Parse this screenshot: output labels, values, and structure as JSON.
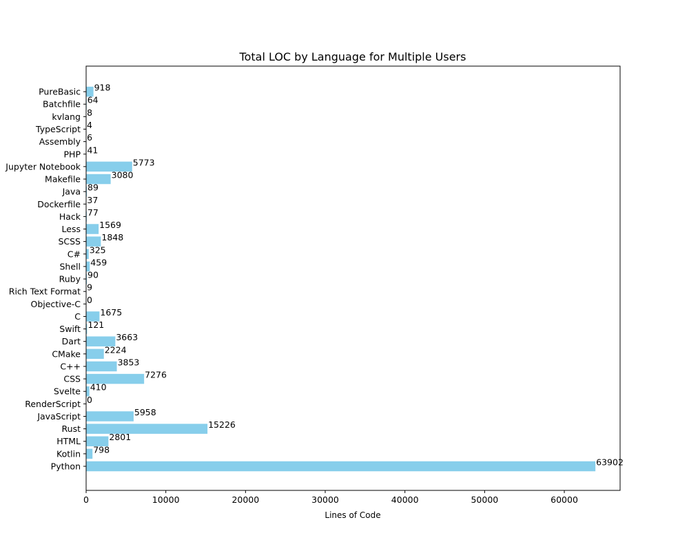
{
  "chart_data": {
    "type": "bar",
    "orientation": "horizontal",
    "title": "Total LOC by Language for Multiple Users",
    "xlabel": "Lines of Code",
    "ylabel": "",
    "xlim": [
      0,
      67000
    ],
    "xticks": [
      0,
      10000,
      20000,
      30000,
      40000,
      50000,
      60000
    ],
    "grid": false,
    "bar_color": "#87CEEB",
    "data_labels": true,
    "categories": [
      "Python",
      "Kotlin",
      "HTML",
      "Rust",
      "JavaScript",
      "RenderScript",
      "Svelte",
      "CSS",
      "C++",
      "CMake",
      "Dart",
      "Swift",
      "C",
      "Objective-C",
      "Rich Text Format",
      "Ruby",
      "Shell",
      "C#",
      "SCSS",
      "Less",
      "Hack",
      "Dockerfile",
      "Java",
      "Makefile",
      "Jupyter Notebook",
      "PHP",
      "Assembly",
      "TypeScript",
      "kvlang",
      "Batchfile",
      "PureBasic"
    ],
    "values": [
      63902,
      798,
      2801,
      15226,
      5958,
      0,
      410,
      7276,
      3853,
      2224,
      3663,
      121,
      1675,
      0,
      9,
      90,
      459,
      325,
      1848,
      1569,
      77,
      37,
      89,
      3080,
      5773,
      41,
      6,
      4,
      8,
      64,
      918
    ]
  }
}
